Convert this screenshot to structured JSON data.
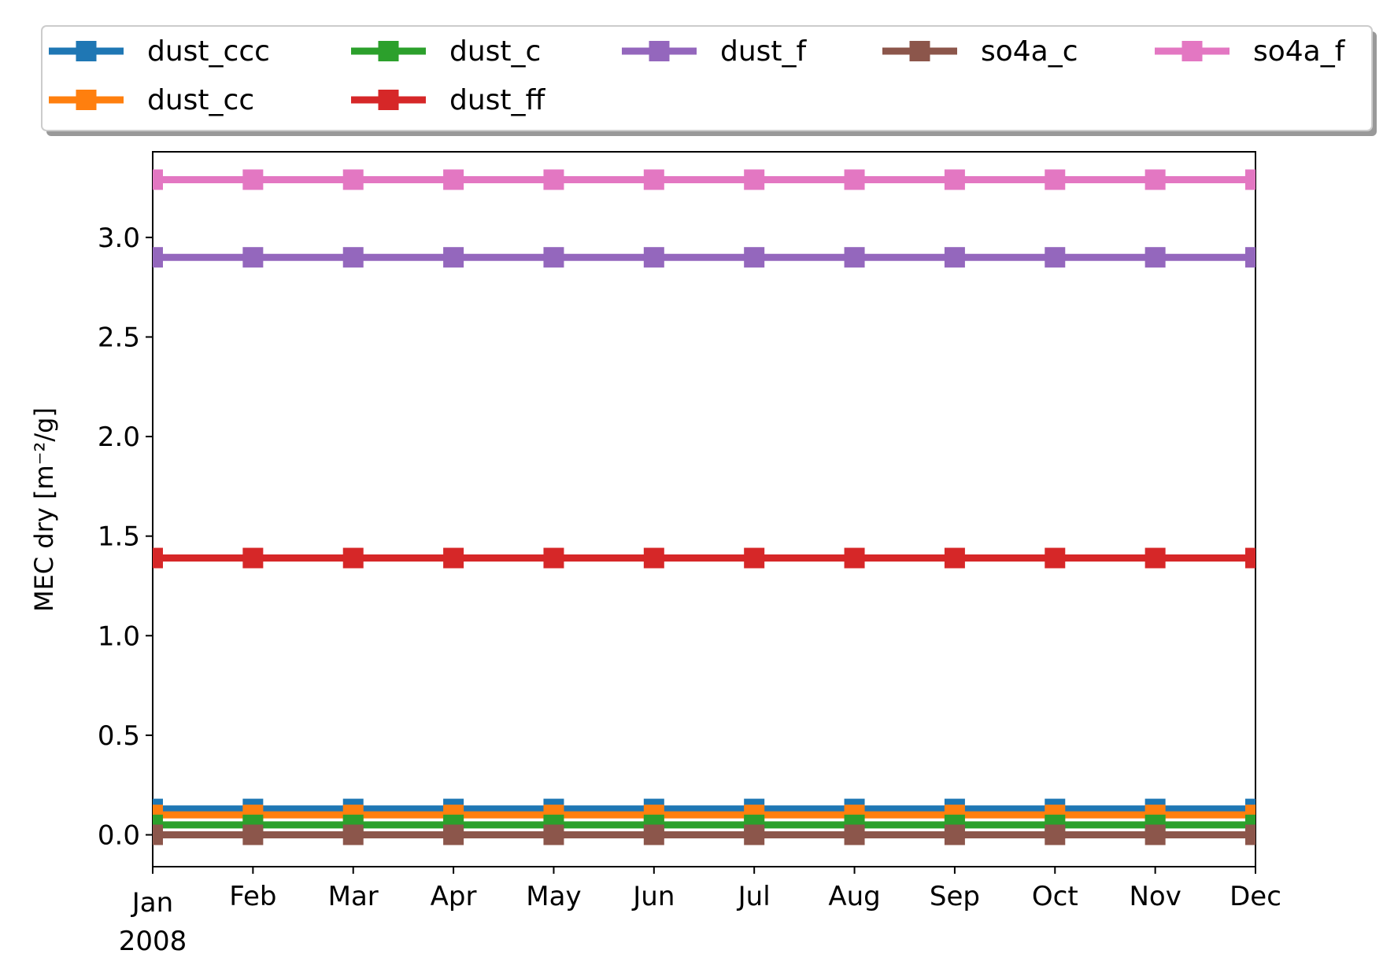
{
  "chart_data": {
    "type": "line",
    "title": "",
    "xlabel": "",
    "ylabel": "MEC dry [m⁻²/g]",
    "x": [
      "2008-01",
      "2008-02",
      "2008-03",
      "2008-04",
      "2008-05",
      "2008-06",
      "2008-07",
      "2008-08",
      "2008-09",
      "2008-10",
      "2008-11",
      "2008-12"
    ],
    "x_tick_labels": [
      "Jan",
      "Feb",
      "Mar",
      "Apr",
      "May",
      "Jun",
      "Jul",
      "Aug",
      "Sep",
      "Oct",
      "Nov",
      "Dec"
    ],
    "x_year_label": "2008",
    "ylim": [
      -0.16,
      3.43
    ],
    "y_ticks": [
      0.0,
      0.5,
      1.0,
      1.5,
      2.0,
      2.5,
      3.0
    ],
    "y_tick_labels": [
      "0.0",
      "0.5",
      "1.0",
      "1.5",
      "2.0",
      "2.5",
      "3.0"
    ],
    "grid": false,
    "legend_placement": "top, above plot, 5 columns",
    "series": [
      {
        "name": "dust_ccc",
        "color": "#1f77b4",
        "values": [
          0.13,
          0.13,
          0.13,
          0.13,
          0.13,
          0.13,
          0.13,
          0.13,
          0.13,
          0.13,
          0.13,
          0.13
        ]
      },
      {
        "name": "dust_cc",
        "color": "#ff7f0e",
        "values": [
          0.1,
          0.1,
          0.1,
          0.1,
          0.1,
          0.1,
          0.1,
          0.1,
          0.1,
          0.1,
          0.1,
          0.1
        ]
      },
      {
        "name": "dust_c",
        "color": "#2ca02c",
        "values": [
          0.05,
          0.05,
          0.05,
          0.05,
          0.05,
          0.05,
          0.05,
          0.05,
          0.05,
          0.05,
          0.05,
          0.05
        ]
      },
      {
        "name": "dust_ff",
        "color": "#d62728",
        "values": [
          1.39,
          1.39,
          1.39,
          1.39,
          1.39,
          1.39,
          1.39,
          1.39,
          1.39,
          1.39,
          1.39,
          1.39
        ]
      },
      {
        "name": "dust_f",
        "color": "#9467bd",
        "values": [
          2.9,
          2.9,
          2.9,
          2.9,
          2.9,
          2.9,
          2.9,
          2.9,
          2.9,
          2.9,
          2.9,
          2.9
        ]
      },
      {
        "name": "so4a_c",
        "color": "#8c564b",
        "values": [
          0.0,
          0.0,
          0.0,
          0.0,
          0.0,
          0.0,
          0.0,
          0.0,
          0.0,
          0.0,
          0.0,
          0.0
        ]
      },
      {
        "name": "so4a_f",
        "color": "#e377c2",
        "values": [
          3.29,
          3.29,
          3.29,
          3.29,
          3.29,
          3.29,
          3.29,
          3.29,
          3.29,
          3.29,
          3.29,
          3.29
        ]
      }
    ],
    "legend_order": [
      "dust_ccc",
      "dust_cc",
      "dust_c",
      "dust_ff",
      "dust_f",
      "so4a_c",
      "so4a_f"
    ]
  }
}
